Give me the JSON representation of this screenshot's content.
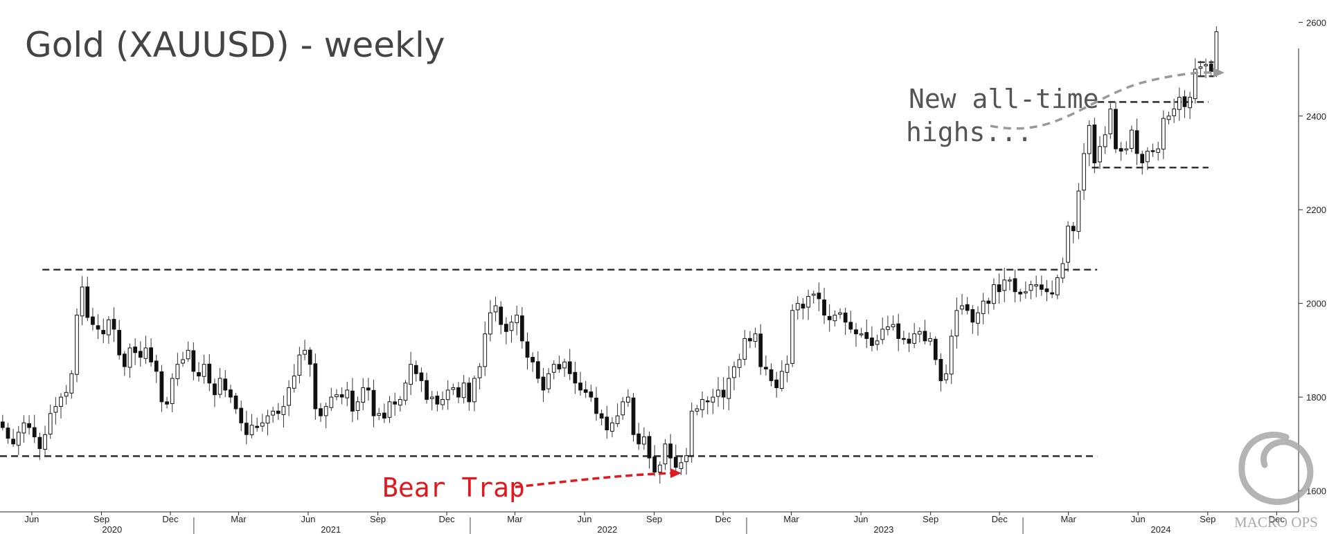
{
  "chart_data": {
    "type": "candlestick",
    "title": "Gold (XAUUSD) - weekly",
    "frequency": "weekly",
    "x_start": "2020-04-20",
    "x_end": "2024-12-30",
    "ylim": [
      1555,
      2630
    ],
    "yticks": [
      1600,
      1800,
      2000,
      2200,
      2400,
      2600
    ],
    "month_ticks": [
      {
        "label": "Jun",
        "date": "2020-06-01"
      },
      {
        "label": "Sep",
        "date": "2020-09-01"
      },
      {
        "label": "Dec",
        "date": "2020-12-01"
      },
      {
        "label": "Mar",
        "date": "2021-03-01"
      },
      {
        "label": "Jun",
        "date": "2021-06-01"
      },
      {
        "label": "Sep",
        "date": "2021-09-01"
      },
      {
        "label": "Dec",
        "date": "2021-12-01"
      },
      {
        "label": "Mar",
        "date": "2022-03-01"
      },
      {
        "label": "Jun",
        "date": "2022-06-01"
      },
      {
        "label": "Sep",
        "date": "2022-09-01"
      },
      {
        "label": "Dec",
        "date": "2022-12-01"
      },
      {
        "label": "Mar",
        "date": "2023-03-01"
      },
      {
        "label": "Jun",
        "date": "2023-06-01"
      },
      {
        "label": "Sep",
        "date": "2023-09-01"
      },
      {
        "label": "Dec",
        "date": "2023-12-01"
      },
      {
        "label": "Mar",
        "date": "2024-03-01"
      },
      {
        "label": "Jun",
        "date": "2024-06-01"
      },
      {
        "label": "Sep",
        "date": "2024-09-01"
      },
      {
        "label": "Dec",
        "date": "2024-12-01"
      }
    ],
    "year_labels": [
      {
        "label": "2020",
        "date": "2020-09-15"
      },
      {
        "label": "2021",
        "date": "2021-07-01"
      },
      {
        "label": "2022",
        "date": "2022-07-01"
      },
      {
        "label": "2023",
        "date": "2023-07-01"
      },
      {
        "label": "2024",
        "date": "2024-07-01"
      }
    ],
    "year_separators": [
      "2021-01-01",
      "2022-01-01",
      "2023-01-01",
      "2024-01-01"
    ],
    "closes": [
      1735,
      1712,
      1700,
      1725,
      1745,
      1735,
      1715,
      1690,
      1720,
      1765,
      1780,
      1800,
      1810,
      1850,
      1975,
      2035,
      1970,
      1955,
      1945,
      1935,
      1965,
      1945,
      1890,
      1865,
      1905,
      1895,
      1885,
      1905,
      1875,
      1855,
      1790,
      1785,
      1840,
      1870,
      1880,
      1900,
      1855,
      1845,
      1870,
      1830,
      1805,
      1840,
      1815,
      1800,
      1775,
      1745,
      1720,
      1740,
      1735,
      1745,
      1760,
      1770,
      1765,
      1780,
      1820,
      1845,
      1890,
      1900,
      1870,
      1775,
      1760,
      1780,
      1800,
      1805,
      1800,
      1815,
      1770,
      1790,
      1820,
      1815,
      1760,
      1765,
      1755,
      1790,
      1785,
      1795,
      1830,
      1870,
      1850,
      1835,
      1795,
      1800,
      1785,
      1795,
      1815,
      1820,
      1800,
      1830,
      1790,
      1840,
      1865,
      1935,
      1980,
      1995,
      1955,
      1940,
      1960,
      1975,
      1920,
      1885,
      1875,
      1840,
      1815,
      1850,
      1870,
      1860,
      1875,
      1850,
      1830,
      1815,
      1810,
      1800,
      1765,
      1755,
      1730,
      1745,
      1760,
      1790,
      1800,
      1720,
      1700,
      1715,
      1670,
      1640,
      1655,
      1700,
      1670,
      1650,
      1660,
      1675,
      1770,
      1775,
      1795,
      1790,
      1800,
      1815,
      1800,
      1840,
      1865,
      1880,
      1925,
      1920,
      1935,
      1865,
      1860,
      1835,
      1820,
      1855,
      1870,
      1985,
      2000,
      1990,
      2015,
      2020,
      2010,
      1975,
      1965,
      1975,
      1980,
      1960,
      1945,
      1935,
      1935,
      1925,
      1910,
      1920,
      1945,
      1950,
      1955,
      1925,
      1925,
      1915,
      1935,
      1940,
      1920,
      1925,
      1880,
      1835,
      1850,
      1930,
      1985,
      1995,
      1985,
      1960,
      1980,
      2005,
      2000,
      2040,
      2025,
      2050,
      2050,
      2025,
      2020,
      2025,
      2040,
      2040,
      2030,
      2025,
      2020,
      2055,
      2085,
      2165,
      2155,
      2240,
      2320,
      2380,
      2300,
      2335,
      2360,
      2415,
      2330,
      2325,
      2330,
      2370,
      2320,
      2300,
      2325,
      2325,
      2330,
      2395,
      2400,
      2415,
      2440,
      2420,
      2440,
      2500,
      2505,
      2510,
      2495,
      2580
    ],
    "levels": [
      {
        "y": 2072,
        "from": "2020-06-15",
        "to": "2024-04-08",
        "style": "dashed"
      },
      {
        "y": 1674,
        "from": "2020-04-20",
        "to": "2024-04-08",
        "style": "dashed"
      },
      {
        "y": 2430,
        "from": "2024-04-08",
        "to": "2024-09-02",
        "style": "dashed"
      },
      {
        "y": 2290,
        "from": "2024-04-01",
        "to": "2024-09-02",
        "style": "dashed"
      },
      {
        "y": 2485,
        "from": "2024-08-19",
        "to": "2024-09-09",
        "style": "dashed"
      },
      {
        "y": 2515,
        "from": "2024-08-19",
        "to": "2024-09-09",
        "style": "dashed"
      }
    ],
    "annotations": [
      {
        "text": "New all-time",
        "color": "#555555",
        "line": 1
      },
      {
        "text": "highs...",
        "color": "#555555",
        "line": 2
      },
      {
        "text": "Bear Trap",
        "color": "#e0191f"
      }
    ]
  },
  "watermark": {
    "text": "MACRO OPS",
    "color": "#9a9a9a"
  },
  "colors": {
    "up_fill": "#ffffff",
    "down_fill": "#111111",
    "wick": "#333333",
    "level": "#333333",
    "annotation_gray": "#999999",
    "annotation_red": "#e0191f"
  }
}
